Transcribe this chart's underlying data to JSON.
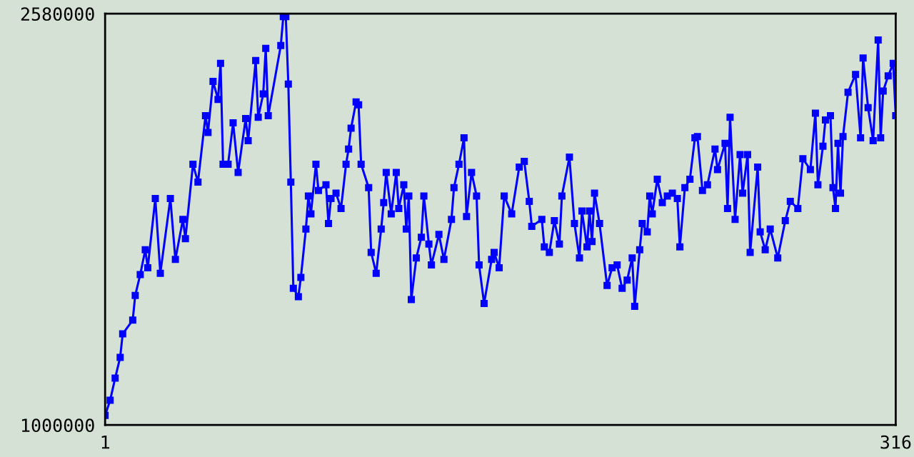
{
  "chart_data": {
    "type": "line",
    "xlim": [
      1,
      316
    ],
    "ylim": [
      1000000,
      2580000
    ],
    "xticks": [
      1,
      316
    ],
    "yticks": [
      1000000,
      2580000
    ],
    "marker": "square",
    "line_style": "solid",
    "x": [
      1,
      3,
      5,
      7,
      8,
      12,
      13,
      15,
      17,
      18,
      21,
      23,
      27,
      29,
      32,
      33,
      36,
      38,
      41,
      42,
      44,
      46,
      47,
      48,
      50,
      52,
      54,
      57,
      58,
      61,
      62,
      64,
      65,
      66,
      71,
      72,
      73,
      74,
      75,
      76,
      78,
      79,
      81,
      82,
      83,
      85,
      86,
      89,
      90,
      91,
      93,
      95,
      97,
      98,
      99,
      101,
      102,
      103,
      106,
      107,
      109,
      111,
      112,
      113,
      115,
      117,
      118,
      120,
      121,
      122,
      123,
      125,
      127,
      128,
      130,
      131,
      134,
      136,
      139,
      140,
      142,
      144,
      145,
      147,
      149,
      150,
      152,
      155,
      156,
      158,
      160,
      163,
      166,
      168,
      170,
      171,
      175,
      176,
      178,
      180,
      182,
      183,
      186,
      188,
      190,
      191,
      193,
      194,
      195,
      196,
      198,
      201,
      203,
      205,
      207,
      209,
      211,
      212,
      214,
      215,
      217,
      218,
      219,
      221,
      223,
      225,
      227,
      229,
      230,
      232,
      234,
      236,
      237,
      239,
      241,
      244,
      245,
      248,
      249,
      250,
      252,
      254,
      255,
      257,
      258,
      261,
      262,
      264,
      266,
      269,
      272,
      274,
      277,
      279,
      282,
      284,
      285,
      287,
      288,
      290,
      291,
      292,
      293,
      294,
      295,
      297,
      300,
      302,
      303,
      305,
      307,
      309,
      310,
      311,
      313,
      315,
      316
    ],
    "series": [
      {
        "color": "#0000ff",
        "values": [
          1037000,
          1095000,
          1180000,
          1260000,
          1350000,
          1403000,
          1498000,
          1578000,
          1673000,
          1604000,
          1870000,
          1583000,
          1870000,
          1636000,
          1790000,
          1716000,
          2002000,
          1933000,
          2188000,
          2124000,
          2320000,
          2251000,
          2389000,
          2002000,
          2002000,
          2161000,
          1970000,
          2177000,
          2092000,
          2400000,
          2182000,
          2272000,
          2447000,
          2188000,
          2458000,
          2569000,
          2569000,
          2310000,
          1933000,
          1525000,
          1493000,
          1567000,
          1753000,
          1880000,
          1811000,
          2002000,
          1901000,
          1923000,
          1774000,
          1870000,
          1891000,
          1832000,
          2002000,
          2060000,
          2140000,
          2241000,
          2230000,
          2002000,
          1912000,
          1663000,
          1583000,
          1753000,
          1854000,
          1970000,
          1811000,
          1970000,
          1832000,
          1923000,
          1753000,
          1880000,
          1482000,
          1642000,
          1721000,
          1880000,
          1695000,
          1615000,
          1732000,
          1636000,
          1790000,
          1912000,
          2002000,
          2103000,
          1801000,
          1970000,
          1880000,
          1615000,
          1467000,
          1636000,
          1663000,
          1604000,
          1880000,
          1811000,
          1991000,
          2013000,
          1859000,
          1763000,
          1790000,
          1684000,
          1663000,
          1785000,
          1695000,
          1880000,
          2029000,
          1774000,
          1642000,
          1822000,
          1684000,
          1822000,
          1705000,
          1891000,
          1774000,
          1536000,
          1604000,
          1615000,
          1525000,
          1557000,
          1642000,
          1456000,
          1673000,
          1774000,
          1742000,
          1880000,
          1811000,
          1944000,
          1854000,
          1880000,
          1891000,
          1870000,
          1684000,
          1912000,
          1944000,
          2103000,
          2108000,
          1901000,
          1923000,
          2060000,
          1981000,
          2082000,
          1832000,
          2182000,
          1790000,
          2039000,
          1891000,
          2039000,
          1663000,
          1991000,
          1742000,
          1673000,
          1753000,
          1642000,
          1785000,
          1859000,
          1832000,
          2023000,
          1981000,
          2198000,
          1923000,
          2071000,
          2172000,
          2188000,
          1912000,
          1832000,
          2082000,
          1891000,
          2108000,
          2278000,
          2347000,
          2103000,
          2410000,
          2219000,
          2092000,
          2479000,
          2103000,
          2283000,
          2341000,
          2389000,
          2188000
        ]
      }
    ]
  }
}
